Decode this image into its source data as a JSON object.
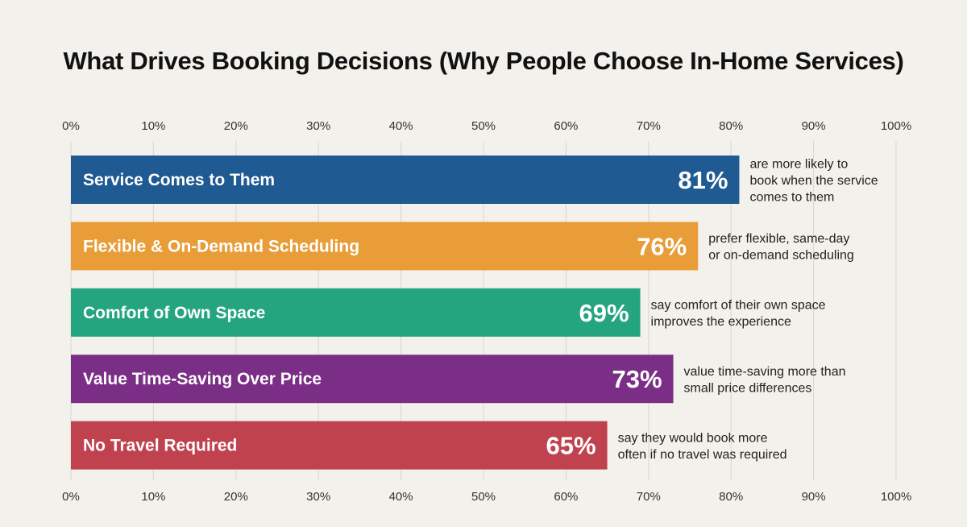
{
  "title": "What Drives Booking Decisions (Why People Choose In-Home Services)",
  "chart_data": {
    "type": "bar",
    "orientation": "horizontal",
    "title": "What Drives Booking Decisions (Why People Choose In-Home Services)",
    "xlabel": "",
    "ylabel": "",
    "xlim": [
      0,
      100
    ],
    "x_ticks": [
      "0%",
      "10%",
      "20%",
      "30%",
      "40%",
      "50%",
      "60%",
      "70%",
      "80%",
      "90%",
      "100%"
    ],
    "grid": true,
    "categories": [
      "Service Comes to Them",
      "Flexible & On-Demand Scheduling",
      "Comfort of Own Space",
      "Value Time-Saving Over Price",
      "No Travel Required"
    ],
    "values": [
      81,
      76,
      69,
      73,
      65
    ],
    "value_labels": [
      "81%",
      "76%",
      "69%",
      "73%",
      "65%"
    ],
    "colors": [
      "#1f5a92",
      "#e89d38",
      "#24a57f",
      "#7b2e86",
      "#c1424f"
    ],
    "annotations": [
      [
        "are more likely to",
        "book when the service",
        "comes to them"
      ],
      [
        "prefer flexible, same-day",
        "or on-demand scheduling"
      ],
      [
        "say comfort of their own space",
        "improves the experience"
      ],
      [
        "value time-saving more than",
        "small price differences"
      ],
      [
        "say they would book more",
        "often if no travel was required"
      ]
    ]
  }
}
